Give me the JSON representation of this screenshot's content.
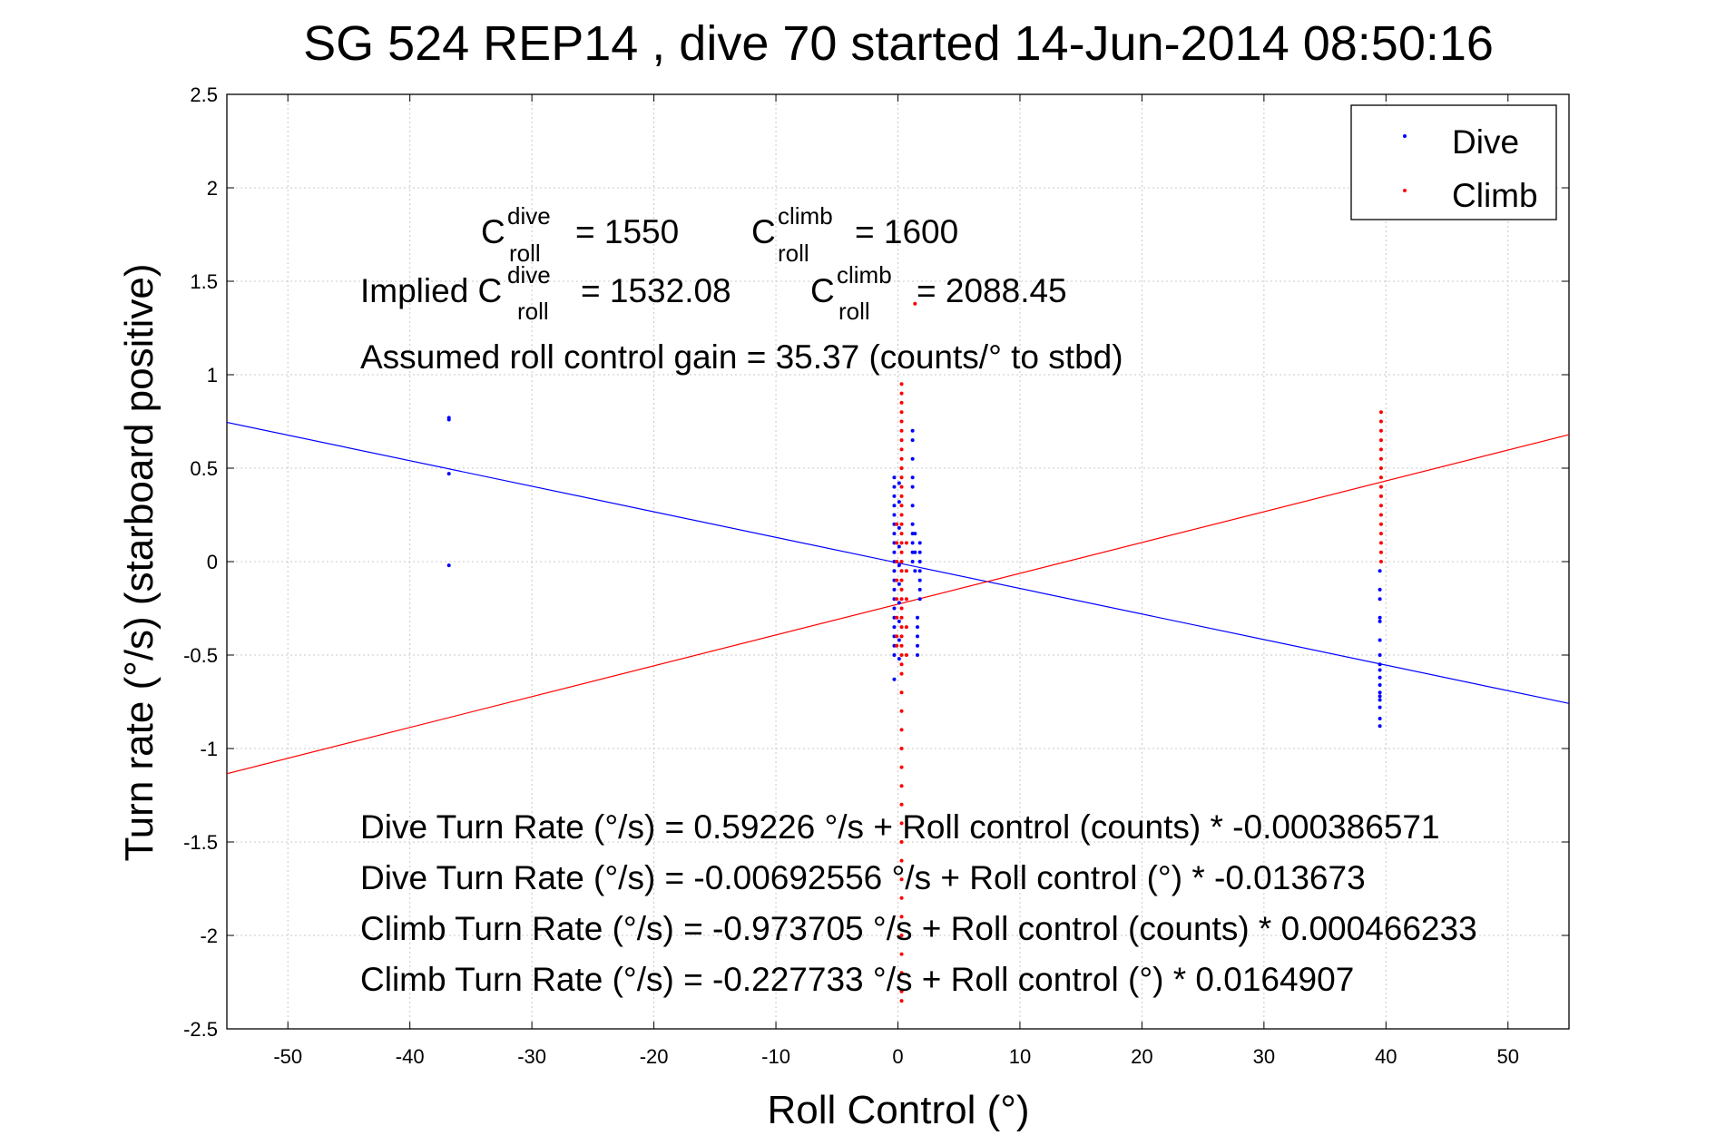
{
  "chart_data": {
    "type": "scatter",
    "title": "SG 524   REP14  , dive 70 started 14-Jun-2014 08:50:16",
    "xlabel": "Roll Control (°)",
    "ylabel": "Turn rate (°/s)  (starboard positive)",
    "xlim": [
      -55,
      55
    ],
    "ylim": [
      -2.5,
      2.5
    ],
    "xticks": [
      -50,
      -40,
      -30,
      -20,
      -10,
      0,
      10,
      20,
      30,
      40,
      50
    ],
    "yticks": [
      2.5,
      2,
      1.5,
      1,
      0.5,
      0,
      -0.5,
      -1,
      -1.5,
      -2,
      -2.5
    ],
    "grid": true,
    "legend_position": "top-right",
    "legend": [
      "Dive",
      "Climb"
    ],
    "annotations": {
      "c_roll_dive": {
        "base": "C",
        "sup": "dive",
        "sub": "roll",
        "value": "= 1550"
      },
      "c_roll_climb": {
        "base": "C",
        "sup": "climb",
        "sub": "roll",
        "value": "= 1600"
      },
      "implied_prefix": "Implied C",
      "implied_dive": {
        "sup": "dive",
        "sub": "roll",
        "value": "= 1532.08"
      },
      "implied_climb": {
        "base": "C",
        "sup": "climb",
        "sub": "roll",
        "value": "= 2088.45"
      },
      "gain": "Assumed roll control gain = 35.37 (counts/° to stbd)",
      "eq1": "Dive Turn Rate (°/s) = 0.59226 °/s + Roll control (counts) * -0.000386571",
      "eq2": "Dive Turn Rate (°/s) = -0.00692556 °/s + Roll control (°) * -0.013673",
      "eq3": "Climb Turn Rate (°/s) = -0.973705 °/s + Roll control (counts) * 0.000466233",
      "eq4": "Climb Turn Rate (°/s) = -0.227733 °/s + Roll control (°) * 0.0164907"
    },
    "series": [
      {
        "name": "Dive",
        "color": "#0000ff",
        "points": [
          [
            -36.8,
            0.77
          ],
          [
            -36.8,
            0.76
          ],
          [
            -36.8,
            0.47
          ],
          [
            -36.8,
            -0.02
          ],
          [
            -0.3,
            0.45
          ],
          [
            -0.3,
            0.4
          ],
          [
            -0.3,
            0.35
          ],
          [
            -0.3,
            0.3
          ],
          [
            -0.3,
            0.25
          ],
          [
            -0.3,
            0.2
          ],
          [
            -0.3,
            0.15
          ],
          [
            -0.3,
            0.1
          ],
          [
            -0.3,
            0.05
          ],
          [
            -0.3,
            0.0
          ],
          [
            -0.3,
            -0.05
          ],
          [
            -0.3,
            -0.1
          ],
          [
            -0.3,
            -0.15
          ],
          [
            -0.3,
            -0.2
          ],
          [
            -0.3,
            -0.25
          ],
          [
            -0.3,
            -0.3
          ],
          [
            -0.3,
            -0.35
          ],
          [
            -0.3,
            -0.4
          ],
          [
            -0.3,
            -0.45
          ],
          [
            -0.3,
            -0.5
          ],
          [
            -0.3,
            -0.63
          ],
          [
            0.1,
            0.42
          ],
          [
            0.1,
            0.32
          ],
          [
            0.1,
            0.18
          ],
          [
            0.1,
            0.08
          ],
          [
            0.1,
            -0.02
          ],
          [
            0.1,
            -0.12
          ],
          [
            0.1,
            -0.22
          ],
          [
            0.1,
            -0.32
          ],
          [
            0.1,
            -0.42
          ],
          [
            0.1,
            -0.52
          ],
          [
            1.2,
            0.7
          ],
          [
            1.2,
            0.65
          ],
          [
            1.2,
            0.55
          ],
          [
            1.2,
            0.45
          ],
          [
            1.2,
            0.4
          ],
          [
            1.2,
            0.3
          ],
          [
            1.2,
            0.2
          ],
          [
            1.2,
            0.15
          ],
          [
            1.2,
            0.1
          ],
          [
            1.2,
            0.05
          ],
          [
            1.2,
            0.0
          ],
          [
            1.8,
            0.1
          ],
          [
            1.8,
            0.05
          ],
          [
            1.8,
            0.0
          ],
          [
            1.8,
            -0.05
          ],
          [
            1.8,
            -0.1
          ],
          [
            1.8,
            -0.15
          ],
          [
            1.8,
            -0.2
          ],
          [
            1.6,
            -0.3
          ],
          [
            1.6,
            -0.35
          ],
          [
            1.6,
            -0.4
          ],
          [
            1.6,
            -0.45
          ],
          [
            1.6,
            -0.5
          ],
          [
            1.4,
            0.15
          ],
          [
            1.4,
            0.05
          ],
          [
            1.4,
            -0.05
          ],
          [
            39.5,
            -0.05
          ],
          [
            39.5,
            -0.15
          ],
          [
            39.5,
            -0.2
          ],
          [
            39.5,
            -0.3
          ],
          [
            39.5,
            -0.32
          ],
          [
            39.5,
            -0.42
          ],
          [
            39.5,
            -0.5
          ],
          [
            39.5,
            -0.55
          ],
          [
            39.5,
            -0.58
          ],
          [
            39.5,
            -0.62
          ],
          [
            39.5,
            -0.66
          ],
          [
            39.5,
            -0.7
          ],
          [
            39.5,
            -0.72
          ],
          [
            39.5,
            -0.74
          ],
          [
            39.5,
            -0.78
          ],
          [
            39.5,
            -0.84
          ],
          [
            39.5,
            -0.88
          ]
        ],
        "fit": {
          "slope": -0.013673,
          "intercept": -0.00692556
        }
      },
      {
        "name": "Climb",
        "color": "#ff0000",
        "points": [
          [
            0.3,
            0.95
          ],
          [
            0.3,
            0.9
          ],
          [
            0.3,
            0.85
          ],
          [
            0.3,
            0.8
          ],
          [
            0.3,
            0.75
          ],
          [
            0.3,
            0.7
          ],
          [
            0.3,
            0.65
          ],
          [
            0.3,
            0.6
          ],
          [
            0.3,
            0.55
          ],
          [
            0.3,
            0.5
          ],
          [
            0.3,
            0.45
          ],
          [
            0.3,
            0.4
          ],
          [
            0.3,
            0.35
          ],
          [
            0.3,
            0.3
          ],
          [
            0.3,
            0.25
          ],
          [
            0.3,
            0.2
          ],
          [
            0.3,
            0.15
          ],
          [
            0.3,
            0.1
          ],
          [
            0.3,
            0.05
          ],
          [
            0.3,
            0.0
          ],
          [
            0.3,
            -0.05
          ],
          [
            0.3,
            -0.1
          ],
          [
            0.3,
            -0.15
          ],
          [
            0.3,
            -0.2
          ],
          [
            0.3,
            -0.25
          ],
          [
            0.3,
            -0.3
          ],
          [
            0.3,
            -0.35
          ],
          [
            0.3,
            -0.4
          ],
          [
            0.3,
            -0.45
          ],
          [
            0.3,
            -0.5
          ],
          [
            0.3,
            -0.55
          ],
          [
            0.3,
            -0.6
          ],
          [
            0.3,
            -0.7
          ],
          [
            0.3,
            -0.8
          ],
          [
            0.3,
            -0.9
          ],
          [
            0.3,
            -1.0
          ],
          [
            0.3,
            -1.1
          ],
          [
            0.3,
            -1.2
          ],
          [
            0.3,
            -1.3
          ],
          [
            0.3,
            -1.4
          ],
          [
            0.3,
            -1.5
          ],
          [
            0.3,
            -1.6
          ],
          [
            0.3,
            -1.7
          ],
          [
            0.3,
            -1.8
          ],
          [
            0.3,
            -1.9
          ],
          [
            0.3,
            -2.0
          ],
          [
            0.3,
            -2.1
          ],
          [
            0.3,
            -2.2
          ],
          [
            0.3,
            -2.3
          ],
          [
            0.3,
            -2.35
          ],
          [
            -0.1,
            0.2
          ],
          [
            -0.1,
            0.1
          ],
          [
            -0.1,
            0.0
          ],
          [
            -0.1,
            -0.1
          ],
          [
            -0.1,
            -0.2
          ],
          [
            -0.1,
            -0.3
          ],
          [
            -0.1,
            -0.4
          ],
          [
            -0.1,
            -0.45
          ],
          [
            0.7,
            0.1
          ],
          [
            0.7,
            -0.05
          ],
          [
            0.7,
            -0.2
          ],
          [
            0.7,
            -0.35
          ],
          [
            0.7,
            -0.5
          ],
          [
            1.4,
            1.38
          ],
          [
            39.6,
            0.8
          ],
          [
            39.6,
            0.75
          ],
          [
            39.6,
            0.7
          ],
          [
            39.6,
            0.65
          ],
          [
            39.6,
            0.6
          ],
          [
            39.6,
            0.55
          ],
          [
            39.6,
            0.5
          ],
          [
            39.6,
            0.45
          ],
          [
            39.6,
            0.4
          ],
          [
            39.6,
            0.35
          ],
          [
            39.6,
            0.3
          ],
          [
            39.6,
            0.25
          ],
          [
            39.6,
            0.2
          ],
          [
            39.6,
            0.15
          ],
          [
            39.6,
            0.1
          ],
          [
            39.6,
            0.05
          ],
          [
            39.6,
            0.0
          ]
        ],
        "fit": {
          "slope": 0.0164907,
          "intercept": -0.227733
        }
      }
    ]
  }
}
